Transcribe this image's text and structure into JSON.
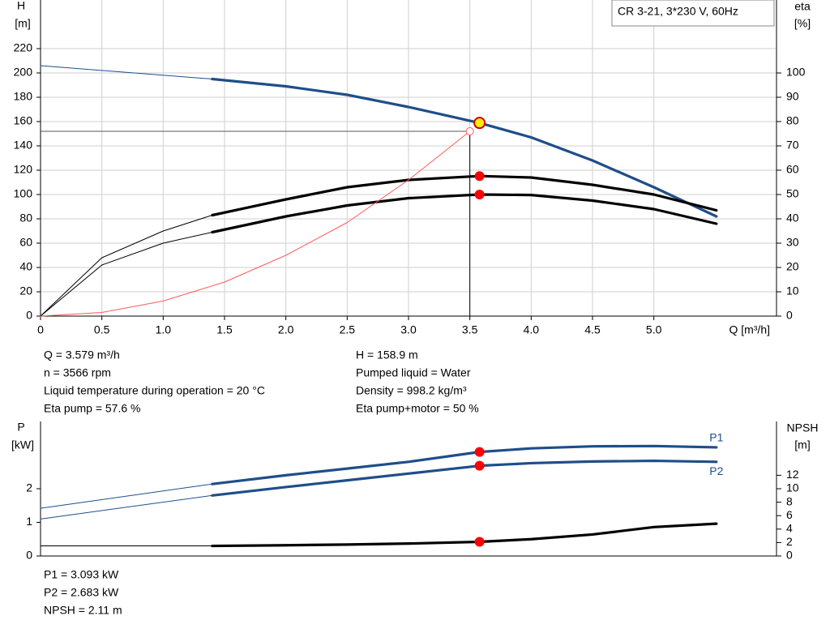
{
  "chart_data": [
    {
      "type": "line",
      "title": "CR 3-21, 3*230 V, 60Hz",
      "x_label": "Q [m³/h]",
      "y_label": "H",
      "y_unit": "[m]",
      "y2_label": "eta",
      "y2_unit": "[%]",
      "xlim": [
        0,
        6
      ],
      "ylim": [
        0,
        260
      ],
      "y2lim": [
        0,
        130
      ],
      "grid": true,
      "xticks": [
        {
          "value": 0,
          "label": "0"
        },
        0.5,
        {
          "value": 1,
          "label": "1.0"
        },
        1.5,
        {
          "value": 2,
          "label": "2.0"
        },
        2.5,
        {
          "value": 3,
          "label": "3.0"
        },
        3.5,
        {
          "value": 4,
          "label": "4.0"
        },
        4.5,
        {
          "value": 5,
          "label": "5.0"
        }
      ],
      "yticks": [
        0,
        20,
        40,
        60,
        80,
        100,
        120,
        140,
        160,
        180,
        200,
        220
      ],
      "y2ticks": [
        0,
        10,
        20,
        30,
        40,
        50,
        60,
        70,
        80,
        90,
        100
      ],
      "thick_from": 1.4,
      "operating_point": {
        "x": 3.579,
        "y": 158.9,
        "color": "#ffee00"
      },
      "reference_point": {
        "x": 3.5,
        "y": 152
      },
      "series": [
        {
          "color": "#1f4e89",
          "x": [
            0,
            1.4,
            2,
            2.5,
            3,
            3.579,
            4,
            4.5,
            5,
            5.51
          ],
          "values": [
            206,
            195,
            189,
            182,
            172,
            158.9,
            147,
            128,
            106,
            82
          ]
        },
        {
          "color": "#000000",
          "axis": "y2",
          "marker_color": "#ff0000",
          "x": [
            0,
            0.5,
            1,
            1.4,
            2,
            2.5,
            3,
            3.579,
            4,
            4.5,
            5,
            5.51
          ],
          "values": [
            0,
            24,
            35,
            41.5,
            48,
            53,
            56,
            57.6,
            57,
            54,
            50,
            43.5
          ]
        },
        {
          "color": "#000000",
          "axis": "y2",
          "marker_color": "#ff0000",
          "x": [
            0,
            0.5,
            1,
            1.4,
            2,
            2.5,
            3,
            3.579,
            4,
            4.5,
            5,
            5.51
          ],
          "values": [
            0,
            21,
            30,
            34.5,
            41,
            45.5,
            48.5,
            50,
            49.8,
            47.5,
            44,
            38
          ]
        },
        {
          "color": "#ff5a5a",
          "thin": true,
          "x": [
            0,
            0.5,
            1,
            1.5,
            2,
            2.5,
            3,
            3.5
          ],
          "values": [
            0,
            3,
            12.4,
            28,
            50,
            77,
            112,
            152
          ]
        }
      ]
    },
    {
      "type": "line",
      "y_label": "P",
      "y_unit": "[kW]",
      "y2_label": "NPSH",
      "y2_unit": "[m]",
      "xlim": [
        0,
        6
      ],
      "ylim": [
        0,
        4
      ],
      "y2lim": [
        0,
        20
      ],
      "grid": false,
      "yticks": [
        0,
        1,
        2
      ],
      "y2ticks": [
        0,
        2,
        4,
        6,
        8,
        10,
        12
      ],
      "thick_from": 1.4,
      "operating_x": 3.579,
      "annotations": [
        {
          "text": "P1",
          "x": 5.51,
          "y": 3.5
        },
        {
          "text": "P2",
          "x": 5.51,
          "y": 2.5
        }
      ],
      "series": [
        {
          "color": "#1f4e89",
          "marker_color": "#ff0000",
          "x": [
            0,
            1.4,
            2,
            2.5,
            3,
            3.579,
            4,
            4.5,
            5,
            5.51
          ],
          "values": [
            1.42,
            2.14,
            2.4,
            2.6,
            2.8,
            3.093,
            3.2,
            3.26,
            3.27,
            3.23
          ]
        },
        {
          "color": "#1f4e89",
          "marker_color": "#ff0000",
          "x": [
            0,
            1.4,
            2,
            2.5,
            3,
            3.579,
            4,
            4.5,
            5,
            5.51
          ],
          "values": [
            1.1,
            1.8,
            2.05,
            2.25,
            2.45,
            2.683,
            2.76,
            2.81,
            2.83,
            2.8
          ]
        },
        {
          "color": "#000000",
          "axis": "y2",
          "marker_color": "#ff0000",
          "x": [
            0,
            1.4,
            2,
            2.5,
            3,
            3.579,
            4,
            4.5,
            5,
            5.51
          ],
          "values": [
            1.5,
            1.5,
            1.6,
            1.7,
            1.85,
            2.11,
            2.5,
            3.2,
            4.3,
            4.8
          ]
        }
      ]
    }
  ],
  "operating_info": {
    "left": [
      "Q = 3.579 m³/h",
      "n = 3566 rpm",
      "Liquid temperature during operation = 20 °C",
      "Eta pump = 57.6 %"
    ],
    "right": [
      "H = 158.9 m",
      "Pumped liquid = Water",
      "Density = 998.2 kg/m³",
      "Eta pump+motor = 50 %"
    ]
  },
  "power_info": [
    "P1 = 3.093 kW",
    "P2 = 2.683 kW",
    "NPSH = 2.11 m"
  ]
}
